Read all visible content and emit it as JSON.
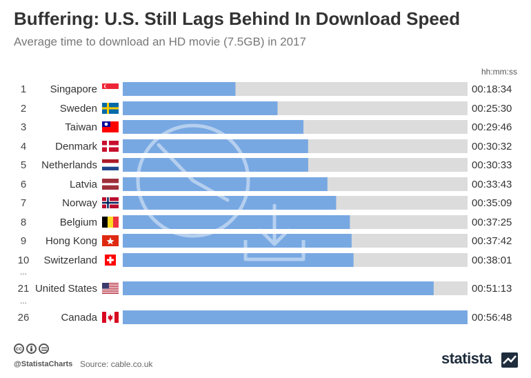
{
  "title": "Buffering: U.S. Still Lags Behind In Download Speed",
  "subtitle": "Average time to download an HD movie (7.5GB) in 2017",
  "unit_label": "hh:mm:ss",
  "footer": {
    "handle": "@StatistaCharts",
    "source": "Source: cable.co.uk",
    "brand": "statista"
  },
  "colors": {
    "bar": "#78a8e2",
    "track": "#dcdcdc",
    "watermark": "#ffffff"
  },
  "icons": [
    "cc-icon",
    "attribution-icon",
    "no-derivatives-icon",
    "statista-logo-icon",
    "clock-download-watermark-icon"
  ],
  "chart_data": {
    "type": "bar",
    "orientation": "horizontal",
    "value_unit": "hh:mm:ss",
    "xlim_seconds": [
      0,
      3408
    ],
    "rows": [
      {
        "rank": "1",
        "country": "Singapore",
        "flag": "singapore",
        "label": "00:18:34",
        "seconds": 1114
      },
      {
        "rank": "2",
        "country": "Sweden",
        "flag": "sweden",
        "label": "00:25:30",
        "seconds": 1530
      },
      {
        "rank": "3",
        "country": "Taiwan",
        "flag": "taiwan",
        "label": "00:29:46",
        "seconds": 1786
      },
      {
        "rank": "4",
        "country": "Denmark",
        "flag": "denmark",
        "label": "00:30:32",
        "seconds": 1832
      },
      {
        "rank": "5",
        "country": "Netherlands",
        "flag": "netherlands",
        "label": "00:30:33",
        "seconds": 1833
      },
      {
        "rank": "6",
        "country": "Latvia",
        "flag": "latvia",
        "label": "00:33:43",
        "seconds": 2023
      },
      {
        "rank": "7",
        "country": "Norway",
        "flag": "norway",
        "label": "00:35:09",
        "seconds": 2109
      },
      {
        "rank": "8",
        "country": "Belgium",
        "flag": "belgium",
        "label": "00:37:25",
        "seconds": 2245
      },
      {
        "rank": "9",
        "country": "Hong Kong",
        "flag": "hongkong",
        "label": "00:37:42",
        "seconds": 2262
      },
      {
        "rank": "10",
        "country": "Switzerland",
        "flag": "switzerland",
        "label": "00:38:01",
        "seconds": 2281
      },
      {
        "rank": "21",
        "country": "United States",
        "flag": "usa",
        "label": "00:51:13",
        "seconds": 3073
      },
      {
        "rank": "26",
        "country": "Canada",
        "flag": "canada",
        "label": "00:56:48",
        "seconds": 3408
      }
    ],
    "gap_marker": "..."
  }
}
